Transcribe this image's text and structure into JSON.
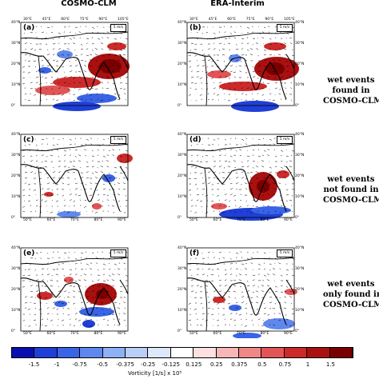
{
  "columns": [
    "COSMO-CLM",
    "ERA-Interim"
  ],
  "row_labels": [
    [
      "wet events",
      "found in",
      "COSMO-CLM"
    ],
    [
      "wet events",
      "not found in",
      "COSMO-CLM"
    ],
    [
      "wet events",
      "only found in",
      "COSMO-CLM"
    ]
  ],
  "panels": [
    "(a)",
    "(b)",
    "(c)",
    "(d)",
    "(e)",
    "(f)"
  ],
  "reference_vector": "5 m/s",
  "lon_ticks": [
    "30°E",
    "45°E",
    "60°E",
    "75°E",
    "90°E",
    "105°E"
  ],
  "lon_ticks_bottom": [
    "50°E",
    "60°E",
    "70°E",
    "80°E",
    "90°E"
  ],
  "lat_ticks": [
    "40°N",
    "30°N",
    "20°N",
    "10°N",
    "0°"
  ],
  "colorbar": {
    "title": "Vorticity [1/s] x 10⁵",
    "labels": [
      "-1.5",
      "-1",
      "-0.75",
      "-0.5",
      "-0.375",
      "-0.25",
      "-0.125",
      "0.125",
      "0.25",
      "0.375",
      "0.5",
      "0.75",
      "1",
      "1.5"
    ],
    "colors": [
      "#0a0fb0",
      "#1f3fd6",
      "#3a64e6",
      "#5f88ee",
      "#8fb0f4",
      "#b9cff8",
      "#dde8fc",
      "#ffffff",
      "#fde0e0",
      "#f8b6b6",
      "#f08787",
      "#e35555",
      "#cc2a2a",
      "#aa1010",
      "#7a0000"
    ]
  }
}
